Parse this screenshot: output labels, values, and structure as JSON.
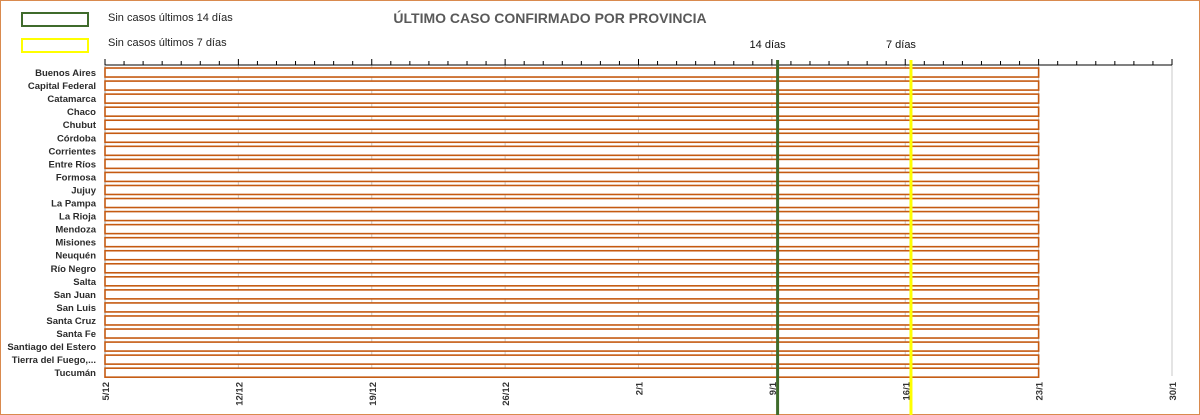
{
  "legend": {
    "items": [
      {
        "label": "Sin casos últimos 14 días",
        "color": "#3f6b2b"
      },
      {
        "label": "Sin casos últimos 7 días",
        "color": "#ffff00"
      }
    ]
  },
  "chart_data": {
    "type": "bar",
    "orientation": "horizontal",
    "title": "ÚLTIMO CASO CONFIRMADO POR PROVINCIA",
    "categories": [
      "Buenos Aires",
      "Capital Federal",
      "Catamarca",
      "Chaco",
      "Chubut",
      "Córdoba",
      "Corrientes",
      "Entre Ríos",
      "Formosa",
      "Jujuy",
      "La Pampa",
      "La Rioja",
      "Mendoza",
      "Misiones",
      "Neuquén",
      "Río Negro",
      "Salta",
      "San Juan",
      "San Luis",
      "Santa Cruz",
      "Santa Fe",
      "Santiago del Estero",
      "Tierra del Fuego,...",
      "Tucumán"
    ],
    "x_ticks": [
      "5/12",
      "12/12",
      "19/12",
      "26/12",
      "2/1",
      "9/1",
      "16/1",
      "23/1",
      "30/1"
    ],
    "x_range_days": [
      0,
      56
    ],
    "bar_start_day": 0,
    "values_day": [
      49,
      49,
      49,
      49,
      49,
      49,
      49,
      49,
      49,
      49,
      49,
      49,
      49,
      49,
      49,
      49,
      49,
      49,
      49,
      49,
      49,
      49,
      49,
      49
    ],
    "bar_color": "#c55a11",
    "bar_fill": "#ffffff",
    "gridlines": true,
    "markers": [
      {
        "label": "14 días",
        "day": 35.3,
        "color": "#3f6b2b"
      },
      {
        "label": "7 días",
        "day": 42.3,
        "color": "#ffff00"
      }
    ]
  }
}
